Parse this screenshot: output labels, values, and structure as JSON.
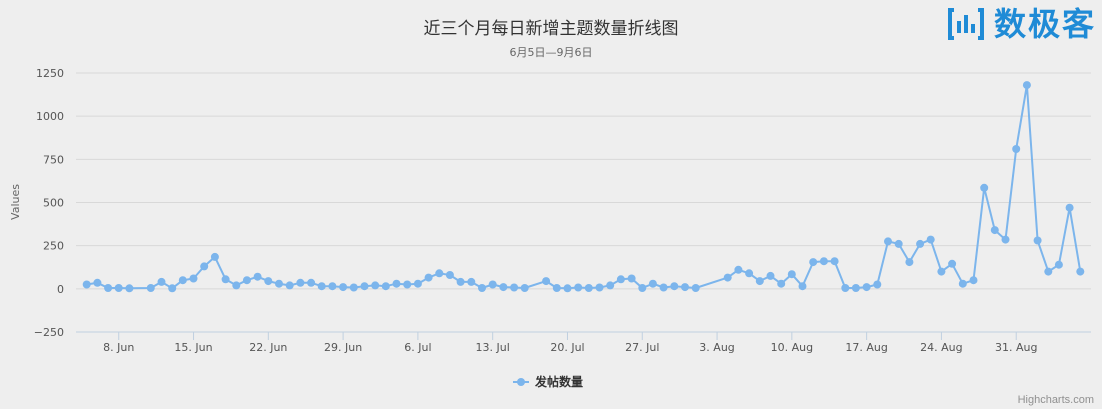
{
  "chart_data": {
    "type": "line",
    "title": "近三个月每日新增主题数量折线图",
    "subtitle": "6月5日—9月6日",
    "ylabel": "Values",
    "xlabel": "",
    "ylim": [
      -250,
      1250
    ],
    "yticks": [
      -250,
      0,
      250,
      500,
      750,
      1000,
      1250
    ],
    "xticks": [
      {
        "date": "2018-06-08",
        "label": "8. Jun"
      },
      {
        "date": "2018-06-15",
        "label": "15. Jun"
      },
      {
        "date": "2018-06-22",
        "label": "22. Jun"
      },
      {
        "date": "2018-06-29",
        "label": "29. Jun"
      },
      {
        "date": "2018-07-06",
        "label": "6. Jul"
      },
      {
        "date": "2018-07-13",
        "label": "13. Jul"
      },
      {
        "date": "2018-07-20",
        "label": "20. Jul"
      },
      {
        "date": "2018-07-27",
        "label": "27. Jul"
      },
      {
        "date": "2018-08-03",
        "label": "3. Aug"
      },
      {
        "date": "2018-08-10",
        "label": "10. Aug"
      },
      {
        "date": "2018-08-17",
        "label": "17. Aug"
      },
      {
        "date": "2018-08-24",
        "label": "24. Aug"
      },
      {
        "date": "2018-08-31",
        "label": "31. Aug"
      }
    ],
    "grid": true,
    "legend_position": "bottom-center",
    "colors": {
      "series": "#7cb5ec",
      "background": "#eeeeee",
      "grid": "#d8d8d8"
    },
    "series": [
      {
        "name": "发帖数量",
        "points": [
          [
            "2018-06-05",
            25
          ],
          [
            "2018-06-06",
            35
          ],
          [
            "2018-06-07",
            5
          ],
          [
            "2018-06-08",
            5
          ],
          [
            "2018-06-09",
            3
          ],
          [
            "2018-06-11",
            5
          ],
          [
            "2018-06-12",
            40
          ],
          [
            "2018-06-13",
            3
          ],
          [
            "2018-06-14",
            50
          ],
          [
            "2018-06-15",
            60
          ],
          [
            "2018-06-16",
            130
          ],
          [
            "2018-06-17",
            185
          ],
          [
            "2018-06-18",
            55
          ],
          [
            "2018-06-19",
            20
          ],
          [
            "2018-06-20",
            50
          ],
          [
            "2018-06-21",
            70
          ],
          [
            "2018-06-22",
            45
          ],
          [
            "2018-06-23",
            30
          ],
          [
            "2018-06-24",
            20
          ],
          [
            "2018-06-25",
            35
          ],
          [
            "2018-06-26",
            35
          ],
          [
            "2018-06-27",
            15
          ],
          [
            "2018-06-28",
            15
          ],
          [
            "2018-06-29",
            10
          ],
          [
            "2018-06-30",
            8
          ],
          [
            "2018-07-01",
            15
          ],
          [
            "2018-07-02",
            20
          ],
          [
            "2018-07-03",
            15
          ],
          [
            "2018-07-04",
            30
          ],
          [
            "2018-07-05",
            25
          ],
          [
            "2018-07-06",
            30
          ],
          [
            "2018-07-07",
            65
          ],
          [
            "2018-07-08",
            90
          ],
          [
            "2018-07-09",
            80
          ],
          [
            "2018-07-10",
            40
          ],
          [
            "2018-07-11",
            40
          ],
          [
            "2018-07-12",
            5
          ],
          [
            "2018-07-13",
            25
          ],
          [
            "2018-07-14",
            10
          ],
          [
            "2018-07-15",
            8
          ],
          [
            "2018-07-16",
            5
          ],
          [
            "2018-07-18",
            45
          ],
          [
            "2018-07-19",
            5
          ],
          [
            "2018-07-20",
            3
          ],
          [
            "2018-07-21",
            8
          ],
          [
            "2018-07-22",
            5
          ],
          [
            "2018-07-23",
            8
          ],
          [
            "2018-07-24",
            20
          ],
          [
            "2018-07-25",
            55
          ],
          [
            "2018-07-26",
            60
          ],
          [
            "2018-07-27",
            5
          ],
          [
            "2018-07-28",
            30
          ],
          [
            "2018-07-29",
            8
          ],
          [
            "2018-07-30",
            15
          ],
          [
            "2018-07-31",
            10
          ],
          [
            "2018-08-01",
            5
          ],
          [
            "2018-08-04",
            65
          ],
          [
            "2018-08-05",
            110
          ],
          [
            "2018-08-06",
            90
          ],
          [
            "2018-08-07",
            45
          ],
          [
            "2018-08-08",
            75
          ],
          [
            "2018-08-09",
            30
          ],
          [
            "2018-08-10",
            85
          ],
          [
            "2018-08-11",
            15
          ],
          [
            "2018-08-12",
            155
          ],
          [
            "2018-08-13",
            160
          ],
          [
            "2018-08-14",
            160
          ],
          [
            "2018-08-15",
            5
          ],
          [
            "2018-08-16",
            5
          ],
          [
            "2018-08-17",
            10
          ],
          [
            "2018-08-18",
            25
          ],
          [
            "2018-08-19",
            275
          ],
          [
            "2018-08-20",
            260
          ],
          [
            "2018-08-21",
            155
          ],
          [
            "2018-08-22",
            260
          ],
          [
            "2018-08-23",
            285
          ],
          [
            "2018-08-24",
            100
          ],
          [
            "2018-08-25",
            145
          ],
          [
            "2018-08-26",
            30
          ],
          [
            "2018-08-27",
            50
          ],
          [
            "2018-08-28",
            585
          ],
          [
            "2018-08-29",
            340
          ],
          [
            "2018-08-30",
            285
          ],
          [
            "2018-08-31",
            810
          ],
          [
            "2018-09-01",
            1180
          ],
          [
            "2018-09-02",
            280
          ],
          [
            "2018-09-03",
            100
          ],
          [
            "2018-09-04",
            140
          ],
          [
            "2018-09-05",
            470
          ],
          [
            "2018-09-06",
            100
          ]
        ]
      }
    ]
  },
  "logo": {
    "text": "数极客"
  },
  "credits": "Highcharts.com"
}
